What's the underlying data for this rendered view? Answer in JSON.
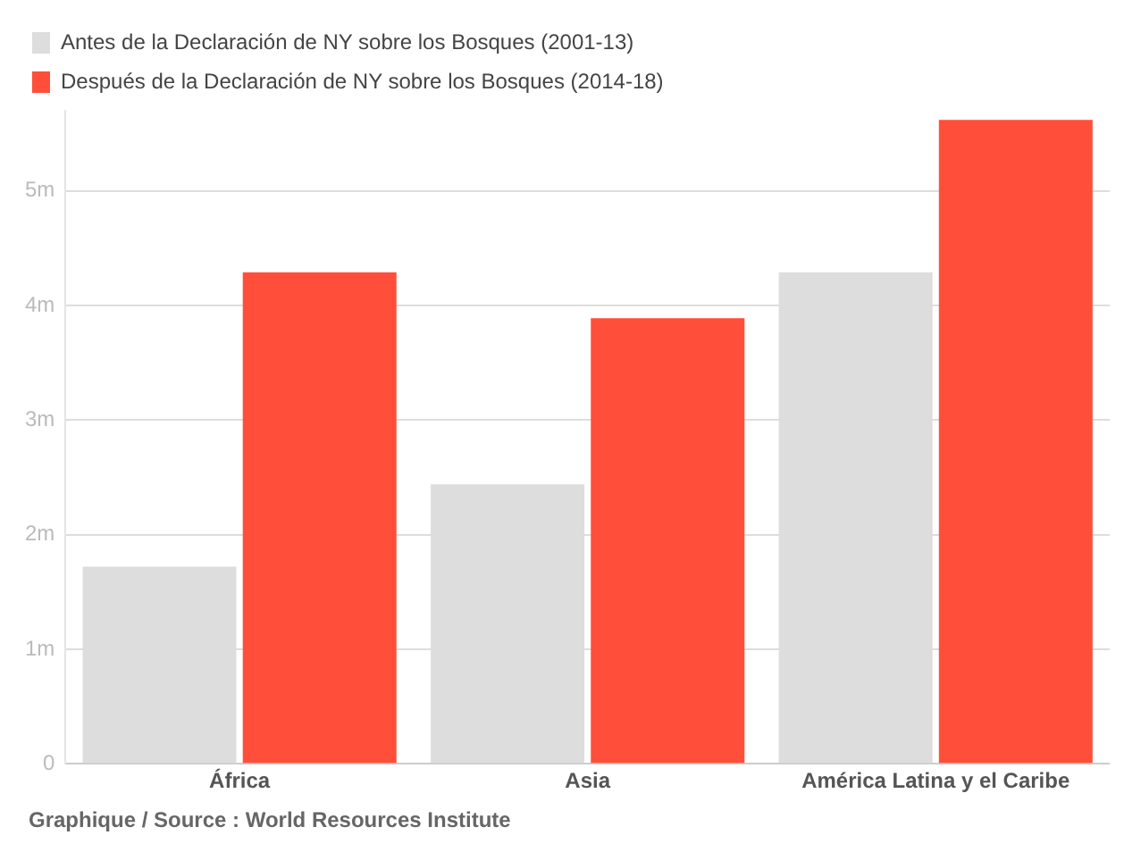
{
  "chart_data": {
    "type": "bar",
    "categories": [
      "África",
      "Asia",
      "América Latina y el Caribe"
    ],
    "series": [
      {
        "name": "Antes de la Declaración de NY sobre los Bosques (2001-13)",
        "color": "#dddddd",
        "values": [
          1.72,
          2.44,
          4.29
        ]
      },
      {
        "name": "Después de la Declaración de NY sobre los Bosques (2014-18)",
        "color": "#ff4f3a",
        "values": [
          4.29,
          3.89,
          5.62
        ]
      }
    ],
    "ylim": [
      0,
      5.7
    ],
    "yticks": [
      0,
      {
        "value": 1,
        "label": "1m"
      },
      {
        "value": 2,
        "label": "2m"
      },
      {
        "value": 3,
        "label": "3m"
      },
      {
        "value": 4,
        "label": "4m"
      },
      {
        "value": 5,
        "label": "5m"
      }
    ],
    "grid": "y",
    "legend": "top left",
    "annotations": [
      "Graphique / Source : World Resources Institute"
    ]
  }
}
